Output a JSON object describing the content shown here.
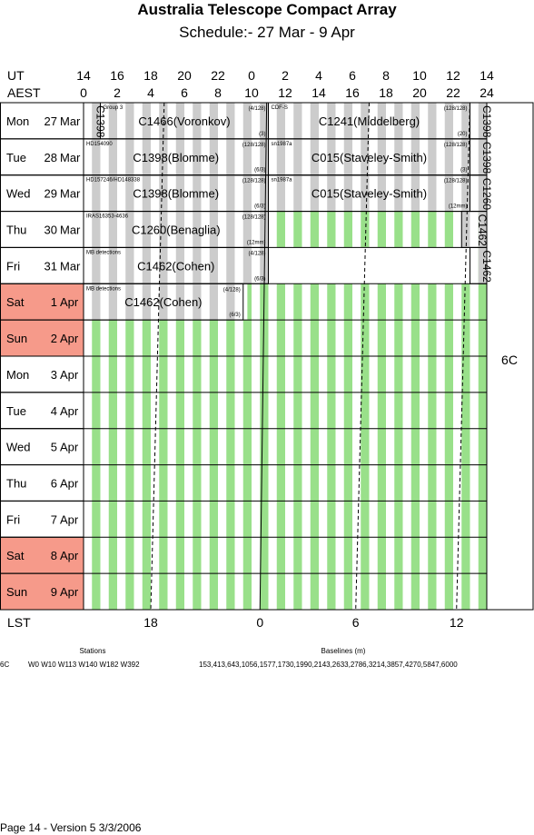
{
  "header": {
    "title": "Australia Telescope Compact Array",
    "subtitle": "Schedule:- 27 Mar - 9  Apr"
  },
  "time_axes": {
    "ut_label": "UT",
    "aest_label": "AEST",
    "ut_ticks": [
      "14",
      "16",
      "18",
      "20",
      "22",
      "0",
      "2",
      "4",
      "6",
      "8",
      "10",
      "12",
      "14"
    ],
    "aest_ticks": [
      "0",
      "2",
      "4",
      "6",
      "8",
      "10",
      "12",
      "14",
      "16",
      "18",
      "20",
      "22",
      "24"
    ],
    "lst_label": "LST",
    "lst_ticks": [
      "18",
      "0",
      "6",
      "12"
    ]
  },
  "days": [
    {
      "dow": "Mon",
      "day": "27",
      "mon": "Mar",
      "weekend": false,
      "free_from": null
    },
    {
      "dow": "Tue",
      "day": "28",
      "mon": "Mar",
      "weekend": false,
      "free_from": null
    },
    {
      "dow": "Wed",
      "day": "29",
      "mon": "Mar",
      "weekend": false,
      "free_from": null
    },
    {
      "dow": "Thu",
      "day": "30",
      "mon": "Mar",
      "weekend": false,
      "free_from": 11
    },
    {
      "dow": "Fri",
      "day": "31",
      "mon": "Mar",
      "weekend": false,
      "free_from": 23.5
    },
    {
      "dow": "Sat",
      "day": "1",
      "mon": "Apr",
      "weekend": true,
      "free_from": 9.75
    },
    {
      "dow": "Sun",
      "day": "2",
      "mon": "Apr",
      "weekend": true,
      "free_from": 0
    },
    {
      "dow": "Mon",
      "day": "3",
      "mon": "Apr",
      "weekend": false,
      "free_from": 0
    },
    {
      "dow": "Tue",
      "day": "4",
      "mon": "Apr",
      "weekend": false,
      "free_from": 0
    },
    {
      "dow": "Wed",
      "day": "5",
      "mon": "Apr",
      "weekend": false,
      "free_from": 0
    },
    {
      "dow": "Thu",
      "day": "6",
      "mon": "Apr",
      "weekend": false,
      "free_from": 0
    },
    {
      "dow": "Fri",
      "day": "7",
      "mon": "Apr",
      "weekend": false,
      "free_from": 0
    },
    {
      "dow": "Sat",
      "day": "8",
      "mon": "Apr",
      "weekend": true,
      "free_from": 0
    },
    {
      "dow": "Sun",
      "day": "9",
      "mon": "Apr",
      "weekend": true,
      "free_from": 0
    }
  ],
  "bookings": [
    {
      "row": 0,
      "start": 0,
      "end": 1,
      "label": "C1398",
      "vertical": true
    },
    {
      "row": 0,
      "start": 1,
      "end": 11,
      "label": "C1466(Voronkov)",
      "source": "Group 3",
      "note_top": "(4/128)",
      "note_bottom": "(3)"
    },
    {
      "row": 0,
      "start": 11,
      "end": 23,
      "label": "C1241(Middelberg)",
      "source": "CDF-S",
      "note_top": "(128/128)",
      "note_bottom": "(20)"
    },
    {
      "row": 0,
      "start": 23,
      "end": 24,
      "label": "C1398",
      "vertical": true
    },
    {
      "row": 1,
      "start": 0,
      "end": 11,
      "label": "C1398(Blomme)",
      "source": "HD154090",
      "note_top": "(128/128)",
      "note_bottom": "(6/3)"
    },
    {
      "row": 1,
      "start": 11,
      "end": 23,
      "label": "C015(Staveley-Smith)",
      "source": "sn1987a",
      "note_top": "(128/128)",
      "note_bottom": "(3)"
    },
    {
      "row": 1,
      "start": 23,
      "end": 24,
      "label": "C1398",
      "vertical": true
    },
    {
      "row": 2,
      "start": 0,
      "end": 11,
      "label": "C1398(Blomme)",
      "source": "HD157246/HD148338",
      "note_top": "(128/128)",
      "note_bottom": "(6/3)"
    },
    {
      "row": 2,
      "start": 11,
      "end": 23,
      "label": "C015(Staveley-Smith)",
      "source": "sn1987a",
      "note_top": "(128/128)",
      "note_bottom": "(12mm)"
    },
    {
      "row": 2,
      "start": 23,
      "end": 24,
      "label": "C1260",
      "vertical": true
    },
    {
      "row": 3,
      "start": 0,
      "end": 11,
      "label": "C1260(Benaglia)",
      "source": "IRAS16353-4636",
      "note_top": "(128/128)",
      "note_bottom": "(12mm)"
    },
    {
      "row": 3,
      "start": 22.5,
      "end": 24,
      "label": "C1462",
      "vertical": true
    },
    {
      "row": 4,
      "start": 0,
      "end": 11,
      "label": "C1462(Cohen)",
      "source": "MB detections",
      "note_top": "(4/128)",
      "note_bottom": "(6/3)"
    },
    {
      "row": 4,
      "start": 23,
      "end": 24,
      "label": "C1462",
      "vertical": true
    },
    {
      "row": 5,
      "start": 0,
      "end": 9.5,
      "label": "C1462(Cohen)",
      "source": "MB detections",
      "note_top": "(4/128)",
      "note_bottom": "(6/3)"
    }
  ],
  "config_label": "6C",
  "stations": {
    "heading": "Stations",
    "config": "6C",
    "value": "W0 W10 W113 W140 W182 W392"
  },
  "baselines": {
    "heading": "Baselines (m)",
    "value": "153,413,643,1056,1577,1730,1990,2143,2633,2786,3214,3857,4270,5847,6000"
  },
  "footer": "Page 14 - Version 5  3/3/2006"
}
